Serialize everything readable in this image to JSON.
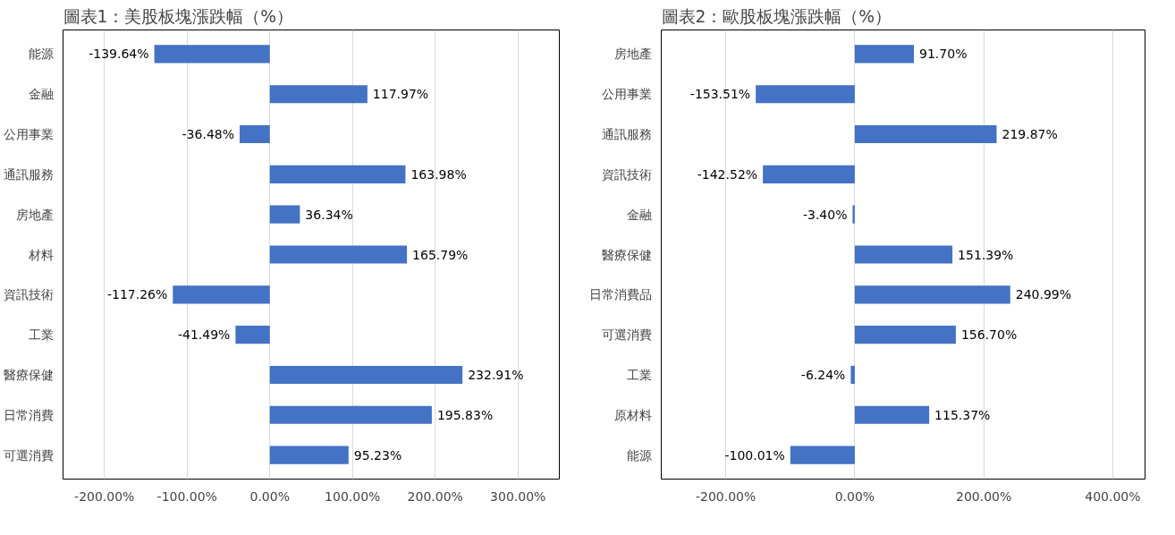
{
  "chart_data": [
    {
      "type": "bar",
      "orientation": "horizontal",
      "title": "圖表1：美股板塊漲跌幅（%）",
      "categories": [
        "能源",
        "金融",
        "公用事業",
        "通訊服務",
        "房地產",
        "材料",
        "資訊技術",
        "工業",
        "醫療保健",
        "日常消費",
        "可選消費"
      ],
      "values": [
        -139.64,
        117.97,
        -36.48,
        163.98,
        36.34,
        165.79,
        -117.26,
        -41.49,
        232.91,
        195.83,
        95.23
      ],
      "value_labels": [
        "-139.64%",
        "117.97%",
        "-36.48%",
        "163.98%",
        "36.34%",
        "165.79%",
        "-117.26%",
        "-41.49%",
        "232.91%",
        "195.83%",
        "95.23%"
      ],
      "color": "#4472c4",
      "xlim": [
        -250,
        350
      ],
      "xticks": [
        {
          "value": -200,
          "label": "-200.00%"
        },
        {
          "value": -100,
          "label": "-100.00%"
        },
        {
          "value": 0,
          "label": "0.00%"
        },
        {
          "value": 100,
          "label": "100.00%"
        },
        {
          "value": 200,
          "label": "200.00%"
        },
        {
          "value": 300,
          "label": "300.00%"
        }
      ],
      "grid": "x"
    },
    {
      "type": "bar",
      "orientation": "horizontal",
      "title": "圖表2：歐股板塊漲跌幅（%）",
      "categories": [
        "房地產",
        "公用事業",
        "通訊服務",
        "資訊技術",
        "金融",
        "醫療保健",
        "日常消費品",
        "可選消費",
        "工業",
        "原材料",
        "能源"
      ],
      "values": [
        91.7,
        -153.51,
        219.87,
        -142.52,
        -3.4,
        151.39,
        240.99,
        156.7,
        -6.24,
        115.37,
        -100.01
      ],
      "value_labels": [
        "91.70%",
        "-153.51%",
        "219.87%",
        "-142.52%",
        "-3.40%",
        "151.39%",
        "240.99%",
        "156.70%",
        "-6.24%",
        "115.37%",
        "-100.01%"
      ],
      "color": "#4472c4",
      "xlim": [
        -300,
        450
      ],
      "xticks": [
        {
          "value": -200,
          "label": "-200.00%"
        },
        {
          "value": 0,
          "label": "0.00%"
        },
        {
          "value": 200,
          "label": "200.00%"
        },
        {
          "value": 400,
          "label": "400.00%"
        }
      ],
      "grid": "x"
    }
  ]
}
